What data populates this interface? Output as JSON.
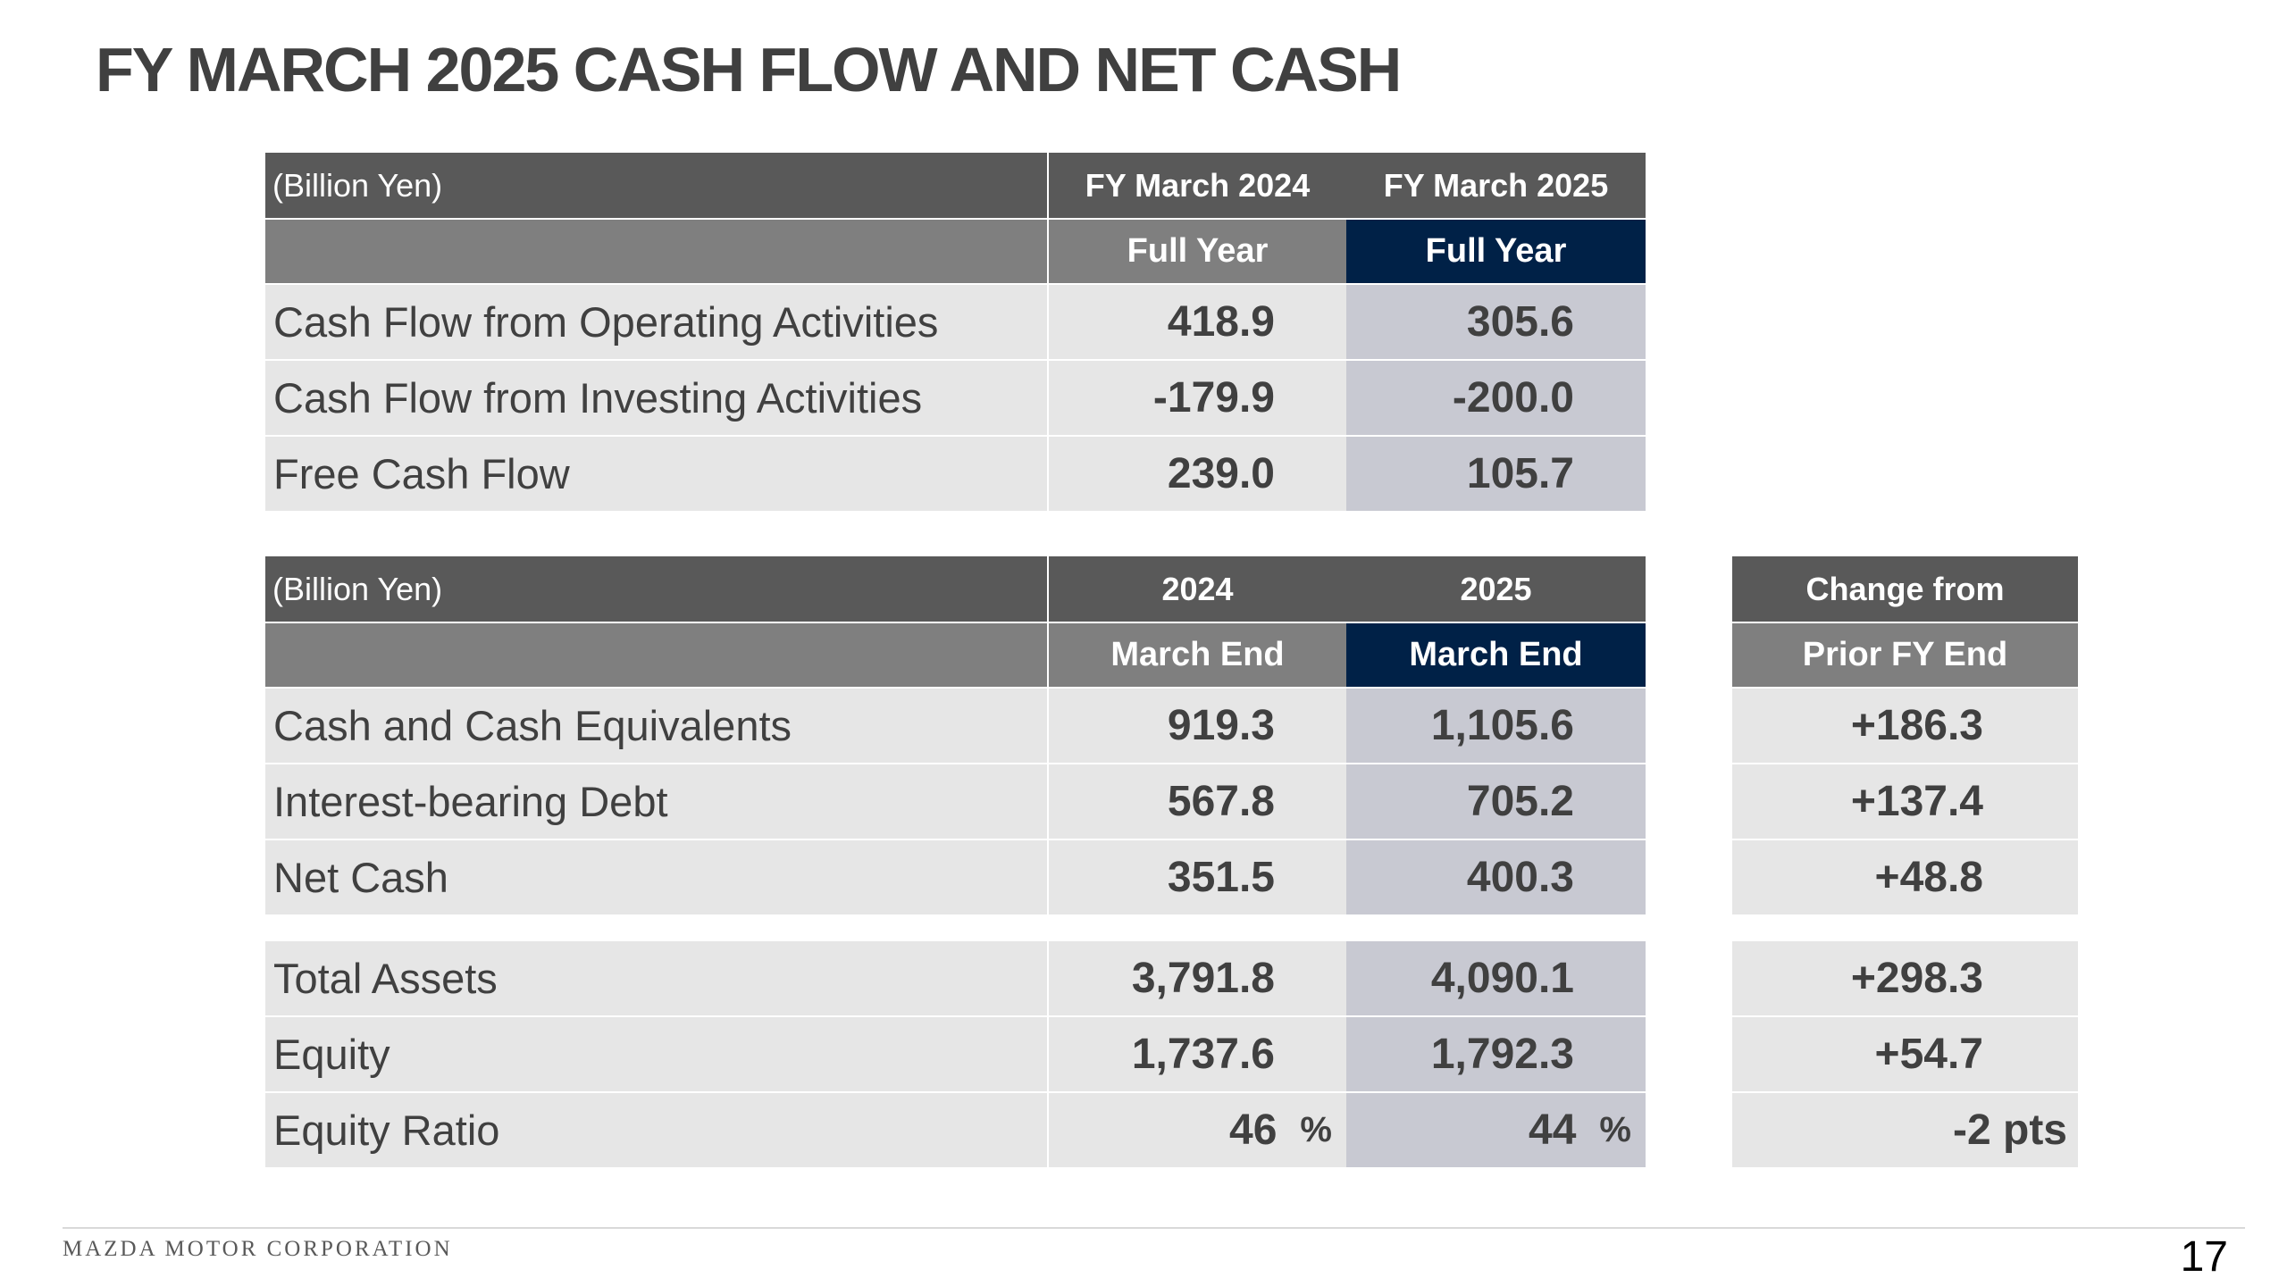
{
  "title": "FY MARCH 2025 CASH FLOW AND NET CASH",
  "table1": {
    "unit": "(Billion Yen)",
    "col1_header": "FY March 2024",
    "col2_header": "FY March 2025",
    "col1_sub": "Full Year",
    "col2_sub": "Full Year",
    "rows": [
      {
        "label": "Cash Flow from Operating Activities",
        "v2024": "418.9",
        "v2025": "305.6"
      },
      {
        "label": "Cash Flow from Investing Activities",
        "v2024": "-179.9",
        "v2025": "-200.0"
      },
      {
        "label": "Free Cash Flow",
        "v2024": "239.0",
        "v2025": "105.7"
      }
    ]
  },
  "table2": {
    "unit": "(Billion Yen)",
    "col1_header": "2024",
    "col2_header": "2025",
    "col1_sub": "March End",
    "col2_sub": "March End",
    "change_header": "Change from",
    "change_sub": "Prior FY End",
    "rows": [
      {
        "label": "Cash and Cash Equivalents",
        "v2024": "919.3",
        "v2025": "1,105.6",
        "change": "+186.3"
      },
      {
        "label": "Interest-bearing Debt",
        "v2024": "567.8",
        "v2025": "705.2",
        "change": "+137.4"
      },
      {
        "label": "Net Cash",
        "v2024": "351.5",
        "v2025": "400.3",
        "change": "+48.8"
      }
    ],
    "rows_b": [
      {
        "label": "Total Assets",
        "v2024": "3,791.8",
        "v2025": "4,090.1",
        "change": "+298.3"
      },
      {
        "label": "Equity",
        "v2024": "1,737.6",
        "v2025": "1,792.3",
        "change": "+54.7"
      },
      {
        "label": "Equity Ratio",
        "v2024": "46",
        "v2025": "44",
        "unit": "%",
        "change": "-2 pts"
      }
    ]
  },
  "footer": {
    "company": "MAZDA MOTOR CORPORATION",
    "page": "17"
  }
}
